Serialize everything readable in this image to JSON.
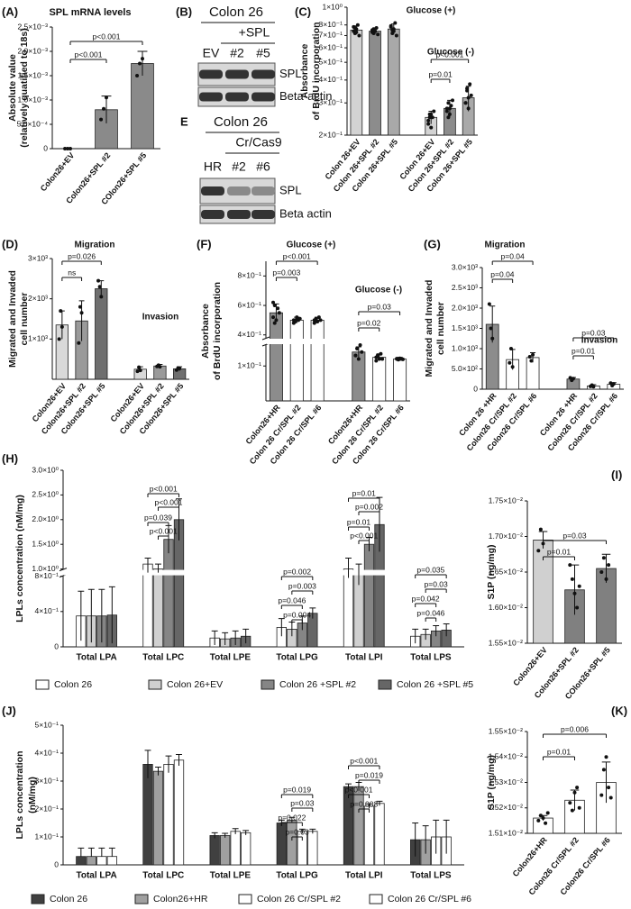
{
  "blots": [
    {
      "letter": "(B)",
      "title": "Colon 26",
      "subtitle": "+SPL",
      "lanes": [
        "EV",
        "#2",
        "#5"
      ],
      "bands": [
        "SPL",
        "Beta-actin"
      ]
    },
    {
      "letter": "E",
      "title": "Colon 26",
      "subtitle": "Cr/Cas9",
      "lanes": [
        "HR",
        "#2",
        "#6"
      ],
      "bands": [
        "SPL",
        "Beta actin"
      ]
    }
  ],
  "chart_data": [
    {
      "type": "bar",
      "letter": "(A)",
      "title": "SPL mRNA levels",
      "ylabel": [
        "Absolute value",
        "(relatively quatified to 18s)"
      ],
      "categories": [
        "Colon26+EV",
        "Colon26+SPL #2",
        "COlon26+SPL #5"
      ],
      "values": [
        0,
        0.0008,
        0.00175
      ],
      "errors": [
        0,
        0.00028,
        0.00025
      ],
      "points": [
        [
          0,
          0,
          0
        ],
        [
          0.0006,
          0.00082,
          0.00105
        ],
        [
          0.0015,
          0.00175,
          0.00185
        ]
      ],
      "colors": [
        "#8a8a8a",
        "#8a8a8a",
        "#8a8a8a"
      ],
      "ylim": [
        0,
        0.0025
      ],
      "yticks": [
        0,
        {
          "value": 0.0005,
          "label": "5.0×10⁻⁴"
        },
        {
          "value": 0.001,
          "label": "1.0×10⁻³"
        },
        {
          "value": 0.0015,
          "label": "1.5×10⁻³"
        },
        {
          "value": 0.002,
          "label": "2.0×10⁻³"
        },
        {
          "value": 0.0025,
          "label": "2.5×10⁻³"
        }
      ],
      "annotations": [
        "p<0.001",
        "p<0.001"
      ]
    },
    {
      "type": "bar",
      "letter": "(C)",
      "ylabel": [
        "Absorbance",
        "of BrdU incorporation"
      ],
      "group_labels": [
        "Glucose (+)",
        "Glucose (-)"
      ],
      "categories": [
        "Colon 26+EV",
        "Colon 26+SPL #2",
        "Colon 26+SPL #5",
        "Colon 26+EV",
        "Colon 26+SPL #2",
        "Colon 26+SPL #5"
      ],
      "values": [
        0.75,
        0.74,
        0.76,
        0.25,
        0.28,
        0.32
      ],
      "errors": [
        0.04,
        0.03,
        0.05,
        0.02,
        0.03,
        0.05
      ],
      "points": [
        [
          0.78,
          0.72,
          0.76,
          0.8,
          0.7,
          0.74,
          0.77,
          0.73
        ],
        [
          0.75,
          0.72,
          0.74,
          0.77,
          0.71,
          0.73,
          0.76,
          0.74
        ],
        [
          0.79,
          0.72,
          0.76,
          0.82,
          0.7,
          0.78,
          0.75,
          0.74
        ],
        [
          0.24,
          0.26,
          0.22,
          0.25,
          0.27,
          0.23,
          0.25,
          0.26
        ],
        [
          0.27,
          0.3,
          0.26,
          0.29,
          0.31,
          0.28,
          0.25,
          0.28
        ],
        [
          0.3,
          0.35,
          0.28,
          0.38,
          0.33,
          0.3,
          0.36,
          0.32
        ]
      ],
      "colors": [
        "#d3d3d3",
        "#8c8c8c",
        "#a9a9a9",
        "#d3d3d3",
        "#8c8c8c",
        "#a9a9a9"
      ],
      "log": true,
      "ylim": [
        0.2,
        1
      ],
      "yticks": [
        {
          "value": 0.2,
          "label": "2×10⁻¹"
        },
        {
          "value": 0.3,
          "label": "3×10⁻¹"
        },
        {
          "value": 0.4,
          "label": "4×10⁻¹"
        },
        {
          "value": 0.5,
          "label": "5×10⁻¹"
        },
        {
          "value": 0.6,
          "label": "6×10⁻¹"
        },
        {
          "value": 0.7,
          "label": "7×10⁻¹"
        },
        {
          "value": 0.8,
          "label": "8×10⁻¹"
        },
        {
          "value": 1,
          "label": "1×10⁰"
        }
      ],
      "annotations": [
        "p=0.01",
        "p<0.001"
      ]
    },
    {
      "type": "bar",
      "letter": "(D)",
      "ylabel": [
        "Migrated and Invaded",
        "cell number"
      ],
      "group_labels": [
        "Migration",
        "Invasion"
      ],
      "categories": [
        "Colon26+EV",
        "Colon26+SPL #2",
        "Colon26+SPL #5",
        "Colon26+EV",
        "Colon26+SPL #2",
        "Colon26+SPL #5"
      ],
      "values": [
        1350,
        1450,
        2250,
        250,
        330,
        260
      ],
      "errors": [
        350,
        500,
        200,
        60,
        40,
        50
      ],
      "points": [
        [
          1000,
          1700,
          1300
        ],
        [
          900,
          1800,
          1650
        ],
        [
          2450,
          2300,
          2050
        ],
        [
          200,
          300,
          220
        ],
        [
          320,
          350,
          310
        ],
        [
          230,
          280,
          270
        ]
      ],
      "colors": [
        "#d9d9d9",
        "#9a9a9a",
        "#6f6f6f",
        "#d9d9d9",
        "#9a9a9a",
        "#6f6f6f"
      ],
      "ylim": [
        0,
        3000
      ],
      "yticks": [
        {
          "value": 1000,
          "label": "1×10³"
        },
        {
          "value": 2000,
          "label": "2×10³"
        },
        {
          "value": 3000,
          "label": "3×10³"
        }
      ],
      "annotations": [
        "ns",
        "p=0.026"
      ]
    },
    {
      "type": "bar",
      "letter": "(F)",
      "ylabel": [
        "Absorbance",
        "of BrdU incorporation"
      ],
      "group_labels": [
        "Glucose (+)",
        "Glucose (-)"
      ],
      "categories": [
        "Colon26+HR",
        "Colon 26 Cr/SPL #2",
        "Colon 26 Cr/SPL #6",
        "Colon26+HR",
        "Colon 26 Cr/SPL #2",
        "Colon 26 Cr/SPL #6"
      ],
      "values": [
        0.55,
        0.5,
        0.5,
        0.14,
        0.125,
        0.12
      ],
      "errors": [
        0.06,
        0.02,
        0.02,
        0.015,
        0.01,
        0.005
      ],
      "points": [
        [
          0.52,
          0.6,
          0.5,
          0.58,
          0.55,
          0.62,
          0.48
        ],
        [
          0.5,
          0.49,
          0.52,
          0.5,
          0.51,
          0.48,
          0.5
        ],
        [
          0.5,
          0.51,
          0.49,
          0.52,
          0.5,
          0.48,
          0.5
        ],
        [
          0.13,
          0.15,
          0.12,
          0.16,
          0.14,
          0.13,
          0.15
        ],
        [
          0.125,
          0.13,
          0.12,
          0.135,
          0.12,
          0.115,
          0.13
        ],
        [
          0.12,
          0.118,
          0.122,
          0.12,
          0.119,
          0.121,
          0.12
        ]
      ],
      "colors": [
        "#8c8c8c",
        "#ffffff",
        "#ffffff",
        "#8c8c8c",
        "#ffffff",
        "#ffffff"
      ],
      "ylim": [
        0,
        0.9
      ],
      "axis_break": [
        0.16,
        0.38
      ],
      "yticks": [
        {
          "value": 0.1,
          "label": "1×10⁻¹"
        },
        {
          "value": 0.4,
          "label": "4×10⁻¹"
        },
        {
          "value": 0.6,
          "label": "6×10⁻¹"
        },
        {
          "value": 0.8,
          "label": "8×10⁻¹"
        }
      ],
      "annotations": [
        "p=0.003",
        "p<0.001",
        "p=0.02",
        "p=0.03"
      ]
    },
    {
      "type": "bar",
      "letter": "(G)",
      "ylabel": [
        "Migrated and Invaded",
        "cell number"
      ],
      "group_labels": [
        "Migration",
        "Invasion"
      ],
      "categories": [
        "Colon 26 +HR",
        "Colon26 Cr/SPL #2",
        "Colon26 Cr/SPL #6",
        "Colon 26 +HR",
        "Colon26 Cr/SPL #2",
        "Colon26 Cr/SPL #6"
      ],
      "values": [
        1600,
        730,
        780,
        250,
        80,
        120
      ],
      "errors": [
        450,
        250,
        120,
        40,
        30,
        40
      ],
      "points": [
        [
          2100,
          1500,
          1250
        ],
        [
          650,
          1000,
          550
        ],
        [
          800,
          700,
          850
        ],
        [
          280,
          220,
          260
        ],
        [
          70,
          100,
          60
        ],
        [
          150,
          90,
          130
        ]
      ],
      "colors": [
        "#8c8c8c",
        "#ffffff",
        "#ffffff",
        "#8c8c8c",
        "#ffffff",
        "#ffffff"
      ],
      "ylim": [
        0,
        3000
      ],
      "yticks": [
        0,
        {
          "value": 500,
          "label": "5.0×10²"
        },
        {
          "value": 1000,
          "label": "1.0×10³"
        },
        {
          "value": 1500,
          "label": "1.5×10³"
        },
        {
          "value": 2000,
          "label": "2.0×10³"
        },
        {
          "value": 2500,
          "label": "2.5×10³"
        },
        {
          "value": 3000,
          "label": "3.0×10³"
        }
      ],
      "annotations": [
        "p=0.04",
        "p=0.04",
        "p=0.01",
        "p=0.03"
      ]
    },
    {
      "type": "grouped_bar",
      "letter": "(H)",
      "ylabel": [
        "LPLs concentration (nM/mg)"
      ],
      "categories": [
        "Total LPA",
        "Total LPC",
        "Total LPE",
        "Total LPG",
        "Total LPI",
        "Total LPS"
      ],
      "series": [
        {
          "name": "Colon 26",
          "color": "#ffffff",
          "values": [
            0.35,
            1.1,
            0.1,
            0.22,
            1.0,
            0.12
          ],
          "errors": [
            0.28,
            0.12,
            0.08,
            0.1,
            0.22,
            0.08
          ]
        },
        {
          "name": "Colon 26+EV",
          "color": "#d0d0d0",
          "values": [
            0.35,
            1.0,
            0.09,
            0.2,
            0.9,
            0.14
          ],
          "errors": [
            0.3,
            0.1,
            0.07,
            0.08,
            0.2,
            0.06
          ]
        },
        {
          "name": "Colon 26 +SPL #2",
          "color": "#858585",
          "values": [
            0.35,
            1.6,
            0.1,
            0.27,
            1.5,
            0.18
          ],
          "errors": [
            0.3,
            0.28,
            0.08,
            0.08,
            0.14,
            0.06
          ]
        },
        {
          "name": "Colon 26 +SPL #5",
          "color": "#666666",
          "values": [
            0.36,
            2.0,
            0.12,
            0.38,
            1.9,
            0.19
          ],
          "errors": [
            0.32,
            0.42,
            0.08,
            0.06,
            0.55,
            0.07
          ]
        }
      ],
      "ylim": [
        0,
        3
      ],
      "axis_break": [
        0.8,
        1.0
      ],
      "yticks": [
        0,
        {
          "value": 0.4,
          "label": "4×10⁻¹"
        },
        {
          "value": 0.8,
          "label": "8×10⁻¹"
        },
        {
          "value": 1.0,
          "label": "1.0×10⁰"
        },
        {
          "value": 1.5,
          "label": "1.5×10⁰"
        },
        {
          "value": 2.0,
          "label": "2.0×10⁰"
        },
        {
          "value": 2.5,
          "label": "2.5×10⁰"
        },
        {
          "value": 3.0,
          "label": "3.0×10⁰"
        }
      ],
      "legend": "bottom",
      "annotations": [
        "p<0.001",
        "p<0.001",
        "p=0.039",
        "p<0.001",
        "p=0.002",
        "p=0.003",
        "p=0.046",
        "p=0.004",
        "p=0.01",
        "p=0.002",
        "p=0.01",
        "p<0.001",
        "p=0.035",
        "p=0.03",
        "p=0.042",
        "p=0.046"
      ]
    },
    {
      "type": "bar",
      "letter": "(I)",
      "ylabel": [
        "S1P (ng/mg)"
      ],
      "categories": [
        "Colon26+EV",
        "Colon26+SPL #2",
        "COlon26+SPL #5"
      ],
      "values": [
        0.01695,
        0.01625,
        0.01655
      ],
      "errors": [
        0.00012,
        0.00035,
        0.0002
      ],
      "points": [
        [
          0.0168,
          0.0171,
          0.0169
        ],
        [
          0.0166,
          0.0164,
          0.0162,
          0.016,
          0.0163
        ],
        [
          0.0165,
          0.0167,
          0.0164,
          0.0166
        ]
      ],
      "colors": [
        "#d0d0d0",
        "#808080",
        "#808080"
      ],
      "ylim": [
        0.0155,
        0.0175
      ],
      "yticks": [
        {
          "value": 0.0155,
          "label": "1.55×10⁻²"
        },
        {
          "value": 0.016,
          "label": "1.60×10⁻²"
        },
        {
          "value": 0.0165,
          "label": "1.65×10⁻²"
        },
        {
          "value": 0.017,
          "label": "1.70×10⁻²"
        },
        {
          "value": 0.0175,
          "label": "1.75×10⁻²"
        }
      ],
      "annotations": [
        "p=0.03",
        "p=0.01"
      ]
    },
    {
      "type": "grouped_bar",
      "letter": "(J)",
      "ylabel": [
        "LPLs concentration",
        "(nM/mg)"
      ],
      "categories": [
        "Total LPA",
        "Total LPC",
        "Total LPE",
        "Total LPG",
        "Total LPI",
        "Total LPS"
      ],
      "series": [
        {
          "name": "Colon 26",
          "color": "#404040",
          "values": [
            0.03,
            0.36,
            0.105,
            0.15,
            0.28,
            0.09
          ],
          "errors": [
            0.03,
            0.05,
            0.01,
            0.01,
            0.01,
            0.06
          ]
        },
        {
          "name": "Colon26+HR",
          "color": "#a0a0a0",
          "values": [
            0.03,
            0.335,
            0.105,
            0.16,
            0.28,
            0.09
          ],
          "errors": [
            0.03,
            0.015,
            0.008,
            0.01,
            0.015,
            0.05
          ]
        },
        {
          "name": "Colon 26 Cr/SPL #2",
          "color": "#ffffff",
          "values": [
            0.03,
            0.36,
            0.12,
            0.12,
            0.21,
            0.1
          ],
          "errors": [
            0.03,
            0.03,
            0.01,
            0.008,
            0.008,
            0.06
          ]
        },
        {
          "name": "Colon 26 Cr/SPL #6",
          "color": "#ffffff",
          "values": [
            0.03,
            0.375,
            0.115,
            0.12,
            0.22,
            0.1
          ],
          "errors": [
            0.03,
            0.02,
            0.008,
            0.008,
            0.008,
            0.06
          ]
        }
      ],
      "ylim": [
        0,
        0.5
      ],
      "yticks": [
        0,
        {
          "value": 0.1,
          "label": "1×10⁻¹"
        },
        {
          "value": 0.2,
          "label": "2×10⁻¹"
        },
        {
          "value": 0.3,
          "label": "3×10⁻¹"
        },
        {
          "value": 0.4,
          "label": "4×10⁻¹"
        },
        {
          "value": 0.5,
          "label": "5×10⁻¹"
        }
      ],
      "legend": "bottom",
      "annotations": [
        "p=0.019",
        "p=0.03",
        "p=0.022",
        "p=0.03",
        "p<0.001",
        "p=0.019",
        "p<0.001",
        "p=0.003"
      ]
    },
    {
      "type": "bar",
      "letter": "(K)",
      "ylabel": [
        "S1P (ng/mg)"
      ],
      "categories": [
        "Colon26+HR",
        "Colon26 Cr/SPL #2",
        "Colon26 Cr/SPL #6"
      ],
      "values": [
        0.01516,
        0.01523,
        0.0153
      ],
      "errors": [
        1e-05,
        4e-05,
        8e-05
      ],
      "points": [
        [
          0.01515,
          0.01517,
          0.01516,
          0.01514,
          0.01518
        ],
        [
          0.01522,
          0.01519,
          0.01526,
          0.01528,
          0.0152
        ],
        [
          0.01525,
          0.01535,
          0.0154,
          0.01528,
          0.01524
        ]
      ],
      "colors": [
        "#ffffff",
        "#ffffff",
        "#ffffff"
      ],
      "ylim": [
        0.0151,
        0.0155
      ],
      "yticks": [
        {
          "value": 0.0151,
          "label": "1.51×10⁻²"
        },
        {
          "value": 0.0152,
          "label": "1.52×10⁻²"
        },
        {
          "value": 0.0153,
          "label": "1.53×10⁻²"
        },
        {
          "value": 0.0154,
          "label": "1.54×10⁻²"
        },
        {
          "value": 0.0155,
          "label": "1.55×10⁻²"
        }
      ],
      "annotations": [
        "p=0.006",
        "p=0.01"
      ]
    }
  ]
}
